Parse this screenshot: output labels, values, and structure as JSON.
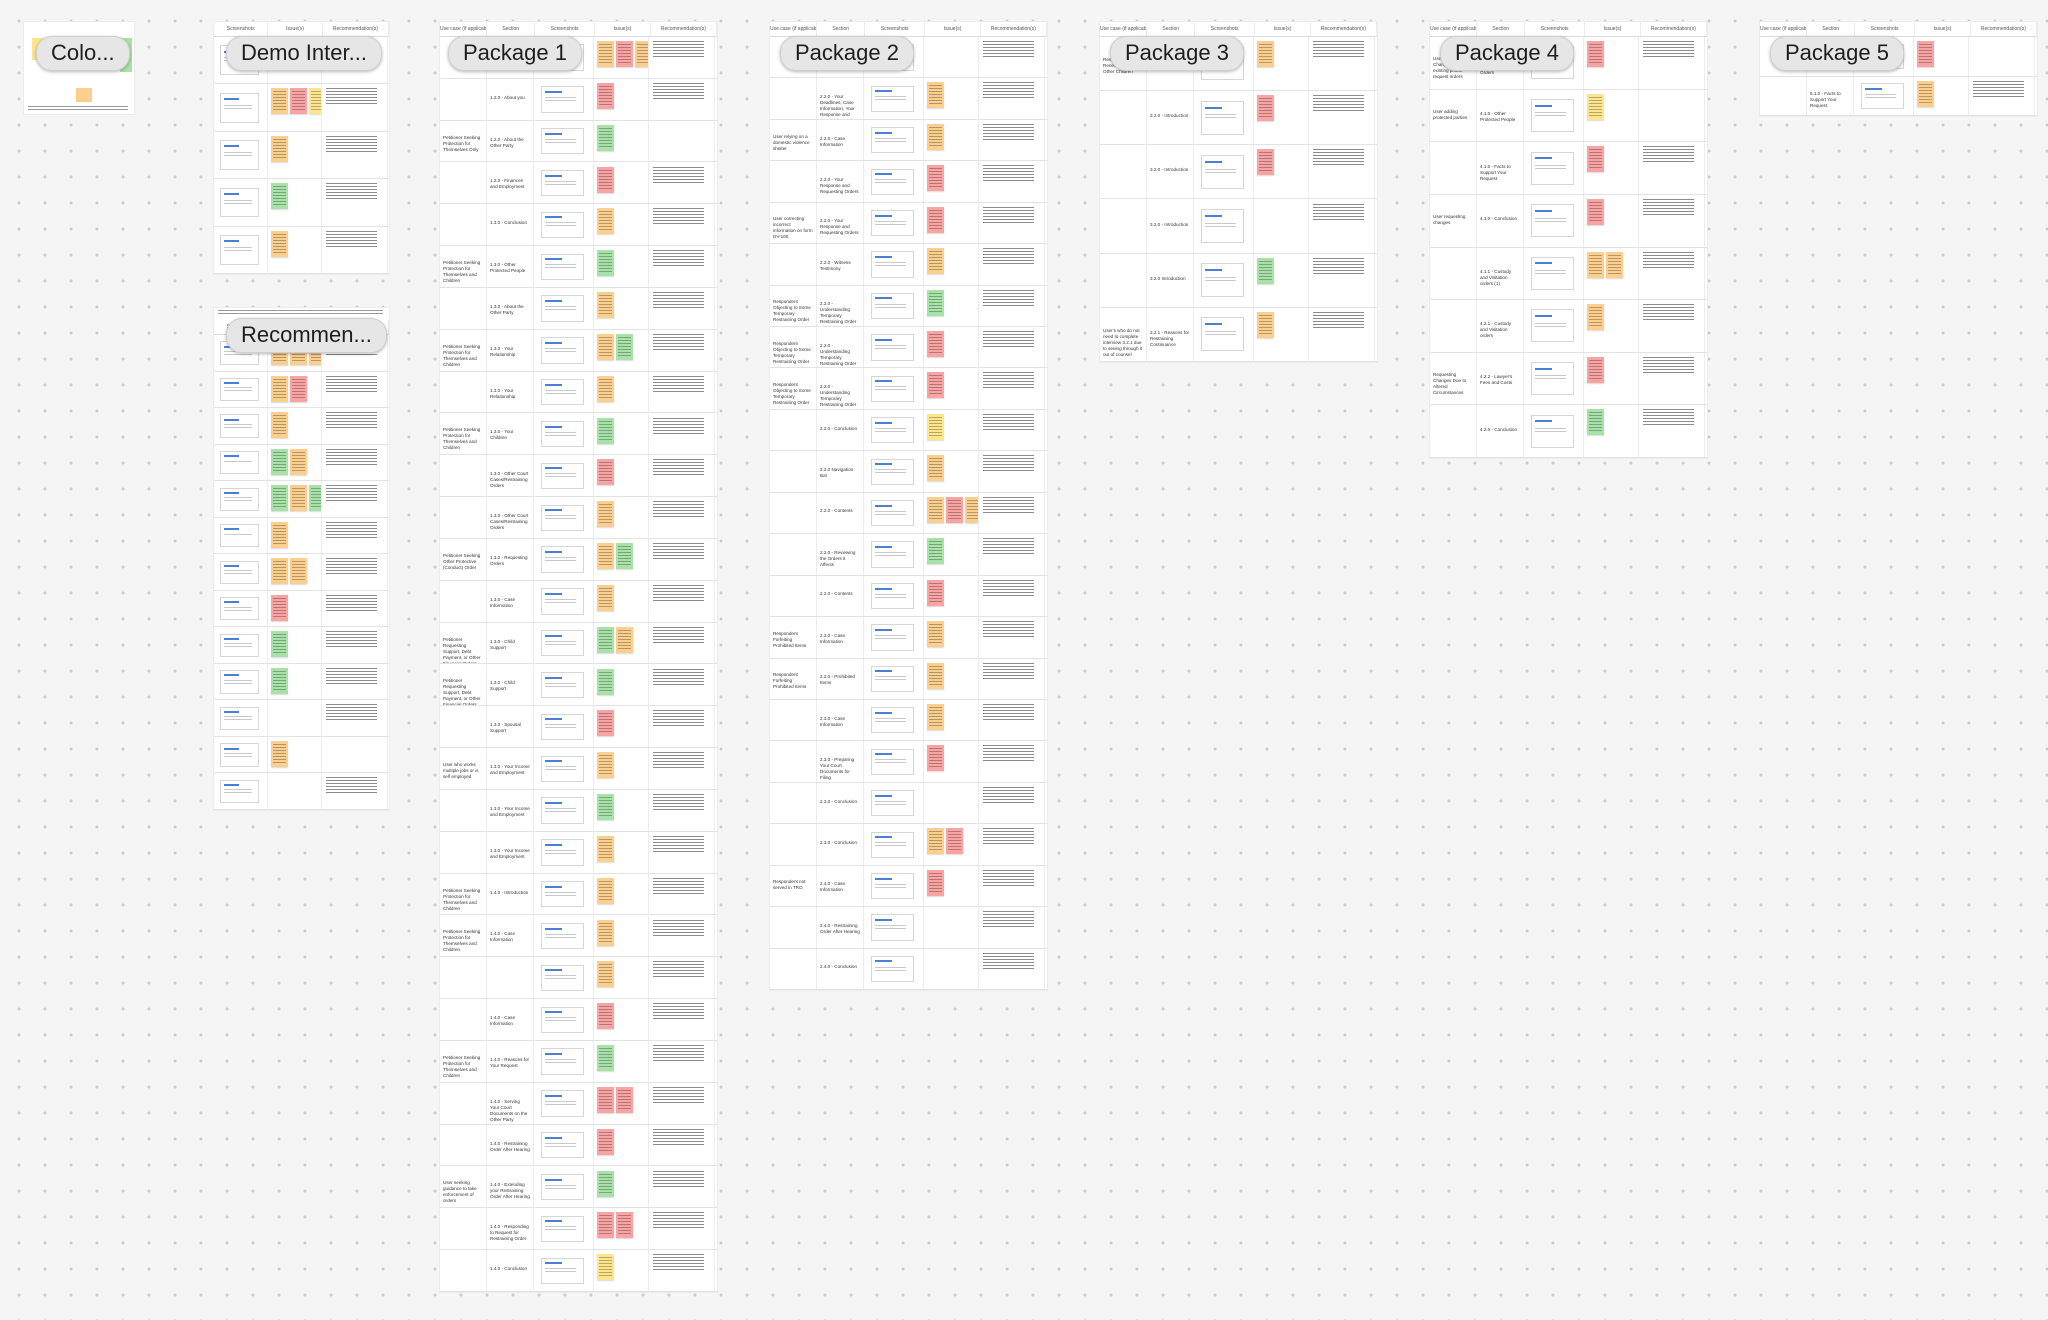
{
  "colors": {
    "canvas": "#f5f5f5",
    "frame": "#ffffff",
    "label_bg": "#e6e6e6",
    "sticky_orange": "#fccf8f",
    "sticky_red": "#f9a3a3",
    "sticky_green": "#a8e2a8",
    "sticky_yellow": "#fde58e",
    "link_blue": "#4a7fd6"
  },
  "columns_full": [
    "Use case (if applicable)",
    "Section",
    "Screenshots",
    "Issue(s)",
    "Recommendation(s)"
  ],
  "columns_short": [
    "Screenshots",
    "Issue(s)",
    "Recommendation(s)"
  ],
  "frames": [
    {
      "id": "colors",
      "label": "Colo...",
      "table": false,
      "rows": []
    },
    {
      "id": "demo",
      "label": "Demo Inter...",
      "table": "short",
      "rows": [
        {
          "use": "",
          "section": "",
          "stickies": [
            "orange",
            "orange"
          ],
          "reco": true
        },
        {
          "use": "",
          "section": "",
          "stickies": [
            "orange",
            "red",
            "yellow"
          ],
          "reco": true
        },
        {
          "use": "",
          "section": "",
          "stickies": [
            "orange"
          ],
          "reco": true
        },
        {
          "use": "",
          "section": "",
          "stickies": [
            "green"
          ],
          "reco": true
        },
        {
          "use": "",
          "section": "",
          "stickies": [
            "orange"
          ],
          "reco": true
        }
      ]
    },
    {
      "id": "recommend",
      "label": "Recommen...",
      "table": "short",
      "rows": [
        {
          "use": "",
          "section": "",
          "stickies": [
            "orange",
            "orange",
            "orange"
          ],
          "reco": true
        },
        {
          "use": "",
          "section": "",
          "stickies": [
            "orange",
            "red"
          ],
          "reco": true
        },
        {
          "use": "",
          "section": "",
          "stickies": [
            "orange"
          ],
          "reco": true
        },
        {
          "use": "",
          "section": "",
          "stickies": [
            "green",
            "orange"
          ],
          "reco": true
        },
        {
          "use": "",
          "section": "",
          "stickies": [
            "green",
            "orange",
            "green"
          ],
          "reco": true
        },
        {
          "use": "",
          "section": "",
          "stickies": [
            "orange"
          ],
          "reco": true
        },
        {
          "use": "",
          "section": "",
          "stickies": [
            "orange",
            "orange"
          ],
          "reco": true
        },
        {
          "use": "",
          "section": "",
          "stickies": [
            "red"
          ],
          "reco": true
        },
        {
          "use": "",
          "section": "",
          "stickies": [
            "green"
          ],
          "reco": true
        },
        {
          "use": "",
          "section": "",
          "stickies": [
            "green"
          ],
          "reco": true
        },
        {
          "use": "",
          "section": "",
          "stickies": [],
          "reco": true
        },
        {
          "use": "",
          "section": "",
          "stickies": [
            "orange"
          ],
          "reco": false
        },
        {
          "use": "",
          "section": "",
          "stickies": [],
          "reco": true
        }
      ]
    },
    {
      "id": "pkg1",
      "label": "Package 1",
      "table": "full",
      "rows": [
        {
          "use": "",
          "section": "",
          "stickies": [
            "orange",
            "red",
            "orange"
          ],
          "reco": true
        },
        {
          "use": "",
          "section": "1.2.0 - About you",
          "stickies": [
            "red"
          ],
          "reco": true
        },
        {
          "use": "Petitioner Seeking Protection for Themselves Only",
          "section": "1.2.0 - About the Other Party",
          "stickies": [
            "green"
          ],
          "reco": false
        },
        {
          "use": "",
          "section": "1.2.0 - Finances and Employment",
          "stickies": [
            "red"
          ],
          "reco": true
        },
        {
          "use": "",
          "section": "1.3.0 - Conclusion",
          "stickies": [
            "orange"
          ],
          "reco": true
        },
        {
          "use": "Petitioner Seeking Protection for Themselves and Children",
          "section": "1.3.0 - Other Protected People",
          "stickies": [
            "green"
          ],
          "reco": true
        },
        {
          "use": "",
          "section": "1.3.0 - About the Other Party",
          "stickies": [
            "orange"
          ],
          "reco": true
        },
        {
          "use": "Petitioner Seeking Protection for Themselves and Children",
          "section": "1.3.0 - Your Relationship",
          "stickies": [
            "orange",
            "green"
          ],
          "reco": true
        },
        {
          "use": "",
          "section": "1.3.0 - Your Relationship",
          "stickies": [
            "orange"
          ],
          "reco": true
        },
        {
          "use": "Petitioner Seeking Protection for Themselves and Children",
          "section": "1.3.0 - Your Children",
          "stickies": [
            "green"
          ],
          "reco": true
        },
        {
          "use": "",
          "section": "1.3.0 - Other Court Cases/Restraining Orders",
          "stickies": [
            "red"
          ],
          "reco": true
        },
        {
          "use": "",
          "section": "1.3.0 - Other Court Cases/Restraining Orders",
          "stickies": [
            "orange"
          ],
          "reco": true
        },
        {
          "use": "Petitioner Seeking Other Protective (Conduct) Order",
          "section": "1.3.0 - Requesting Orders",
          "stickies": [
            "orange",
            "green"
          ],
          "reco": true
        },
        {
          "use": "",
          "section": "1.3.0 - Case Information",
          "stickies": [
            "orange"
          ],
          "reco": true
        },
        {
          "use": "Petitioner Requesting Support, Debt Payment, or Other Financial Orders",
          "section": "1.3.0 - Child Support",
          "stickies": [
            "green",
            "orange"
          ],
          "reco": true
        },
        {
          "use": "Petitioner Requesting Support, Debt Payment, or Other Financial Orders",
          "section": "1.3.0 - Child Support",
          "stickies": [
            "green"
          ],
          "reco": true
        },
        {
          "use": "",
          "section": "1.3.0 - Spousal Support",
          "stickies": [
            "red"
          ],
          "reco": true
        },
        {
          "use": "User who works multiple jobs or is self employed",
          "section": "1.3.0 - Your Income and Employment",
          "stickies": [
            "orange"
          ],
          "reco": true
        },
        {
          "use": "",
          "section": "1.3.0 - Your Income and Employment",
          "stickies": [
            "green"
          ],
          "reco": true
        },
        {
          "use": "",
          "section": "1.3.0 - Your Income and Employment",
          "stickies": [
            "orange"
          ],
          "reco": true
        },
        {
          "use": "Petitioner Seeking Protection for Themselves and Children",
          "section": "1.4.0 - Introduction",
          "stickies": [
            "orange"
          ],
          "reco": true
        },
        {
          "use": "Petitioner Seeking Protection for Themselves and Children",
          "section": "1.4.0 - Case Information",
          "stickies": [
            "orange"
          ],
          "reco": true
        },
        {
          "use": "",
          "section": "",
          "stickies": [
            "orange"
          ],
          "reco": true
        },
        {
          "use": "",
          "section": "1.4.0 - Case Information",
          "stickies": [
            "red"
          ],
          "reco": true
        },
        {
          "use": "Petitioner Seeking Protection for Themselves and Children",
          "section": "1.4.0 - Reasons for Your Request",
          "stickies": [
            "green"
          ],
          "reco": true
        },
        {
          "use": "",
          "section": "1.4.0 - Serving Your Court Documents on the Other Party",
          "stickies": [
            "red",
            "red"
          ],
          "reco": true
        },
        {
          "use": "",
          "section": "1.4.0 - Restraining Order After Hearing",
          "stickies": [
            "red"
          ],
          "reco": true
        },
        {
          "use": "User seeking guidance to take enforcement of orders",
          "section": "1.4.0 - Extending your Restraining Order After Hearing",
          "stickies": [
            "green"
          ],
          "reco": true
        },
        {
          "use": "",
          "section": "1.4.0 - Responding to Request for Restraining Order",
          "stickies": [
            "red",
            "red"
          ],
          "reco": true
        },
        {
          "use": "",
          "section": "1.4.0 - Conclusion",
          "stickies": [
            "yellow"
          ],
          "reco": true
        }
      ]
    },
    {
      "id": "pkg2",
      "label": "Package 2",
      "table": "full",
      "rows": [
        {
          "use": "",
          "section": "",
          "stickies": [],
          "reco": true
        },
        {
          "use": "",
          "section": "2.2.0 - Your Deadlines, Case Information, Your Response and Requesting Orders",
          "stickies": [
            "orange"
          ],
          "reco": true
        },
        {
          "use": "User relying on a domestic violence shelter",
          "section": "2.2.0 - Case Information",
          "stickies": [
            "orange"
          ],
          "reco": true
        },
        {
          "use": "",
          "section": "2.2.0 - Your Response and Requesting Orders",
          "stickies": [
            "red"
          ],
          "reco": true
        },
        {
          "use": "User correcting incorrect information on form DV-100",
          "section": "2.2.0 - Your Response and Requesting Orders",
          "stickies": [
            "red"
          ],
          "reco": true
        },
        {
          "use": "",
          "section": "2.2.0 - Witness Testimony",
          "stickies": [
            "orange"
          ],
          "reco": true
        },
        {
          "use": "Respondent Objecting to Some Temporary Restraining Order",
          "section": "2.2.0 - Understanding Temporary Restraining Order",
          "stickies": [
            "green"
          ],
          "reco": true
        },
        {
          "use": "Respondent Objecting to Some Temporary Restraining Order",
          "section": "2.2.0 - Understanding Temporary Restraining Order",
          "stickies": [
            "red"
          ],
          "reco": true
        },
        {
          "use": "Respondent Objecting to Some Temporary Restraining Order",
          "section": "2.2.0 - Understanding Temporary Restraining Order",
          "stickies": [
            "red"
          ],
          "reco": true
        },
        {
          "use": "",
          "section": "2.2.0 - Conclusion",
          "stickies": [
            "yellow"
          ],
          "reco": true
        },
        {
          "use": "",
          "section": "2.2.0 Navigation Bar",
          "stickies": [
            "orange"
          ],
          "reco": true
        },
        {
          "use": "",
          "section": "2.2.0 - Contents",
          "stickies": [
            "orange",
            "red",
            "orange"
          ],
          "reco": true
        },
        {
          "use": "",
          "section": "2.2.0 - Reviewing the Orders it Affects",
          "stickies": [
            "green"
          ],
          "reco": true
        },
        {
          "use": "",
          "section": "2.2.0 - Contents",
          "stickies": [
            "red"
          ],
          "reco": true
        },
        {
          "use": "Respondent Forfeiting Prohibited Items",
          "section": "2.2.0 - Case Information",
          "stickies": [
            "orange"
          ],
          "reco": true
        },
        {
          "use": "Respondent Forfeiting Prohibited Items",
          "section": "2.2.0 - Prohibited Items",
          "stickies": [
            "orange"
          ],
          "reco": true
        },
        {
          "use": "",
          "section": "2.3.0 - Case Information",
          "stickies": [
            "orange"
          ],
          "reco": true
        },
        {
          "use": "",
          "section": "2.3.0 - Preparing Your Court Documents for Filing",
          "stickies": [
            "red"
          ],
          "reco": true
        },
        {
          "use": "",
          "section": "2.3.0 - Conclusion",
          "stickies": [],
          "reco": true
        },
        {
          "use": "",
          "section": "2.3.0 - Conclusion",
          "stickies": [
            "orange",
            "red"
          ],
          "reco": true
        },
        {
          "use": "Respondent not served in TRO",
          "section": "2.4.0 - Case Information",
          "stickies": [
            "red"
          ],
          "reco": true
        },
        {
          "use": "",
          "section": "2.4.0 - Restraining Order After Hearing",
          "stickies": [],
          "reco": true
        },
        {
          "use": "",
          "section": "2.4.0 - Conclusion",
          "stickies": [],
          "reco": true
        }
      ]
    },
    {
      "id": "pkg3",
      "label": "Package 3",
      "table": "full",
      "rows": [
        {
          "use": "Responding to Renewal form or Other Children",
          "section": "3.1.0 Conclusion",
          "stickies": [
            "orange"
          ],
          "reco": true
        },
        {
          "use": "",
          "section": "3.2.0 - Introduction",
          "stickies": [
            "red"
          ],
          "reco": true
        },
        {
          "use": "",
          "section": "3.2.0 - Introduction",
          "stickies": [
            "red"
          ],
          "reco": true
        },
        {
          "use": "",
          "section": "3.2.0 - Introduction",
          "stickies": [],
          "reco": true
        },
        {
          "use": "",
          "section": "3.2.0 Introduction",
          "stickies": [
            "green"
          ],
          "reco": true
        },
        {
          "use": "User's who do not need to complete interview 3.2.1 due to seeing through it out of counsel",
          "section": "3.2.1 - Reasons for Restraining Continuance",
          "stickies": [
            "orange"
          ],
          "reco": true
        }
      ]
    },
    {
      "id": "pkg4",
      "label": "Package 4",
      "table": "full",
      "rows": [
        {
          "use": "User Requesting Changes to existing phone request orders",
          "section": "4.1.0 - Request to Change or End Orders",
          "stickies": [
            "red"
          ],
          "reco": true
        },
        {
          "use": "User adding protected parties",
          "section": "4.1.0 - Other Protected People",
          "stickies": [
            "yellow"
          ],
          "reco": false
        },
        {
          "use": "",
          "section": "4.1.0 - Facts to Support Your Request",
          "stickies": [
            "red"
          ],
          "reco": true
        },
        {
          "use": "User requesting changes",
          "section": "4.1.0 - Conclusion",
          "stickies": [
            "red"
          ],
          "reco": true
        },
        {
          "use": "",
          "section": "4.1.1 - Custody and Visitation orders (1)",
          "stickies": [
            "orange",
            "orange"
          ],
          "reco": true
        },
        {
          "use": "",
          "section": "4.2.1 - Custody and Visitation orders",
          "stickies": [
            "orange"
          ],
          "reco": true
        },
        {
          "use": "Requesting Changes Due to Altered Circumstances",
          "section": "4.2.2 - Lawyer's Fees and Costs",
          "stickies": [
            "red"
          ],
          "reco": true
        },
        {
          "use": "",
          "section": "4.2.0 - Conclusion",
          "stickies": [
            "green"
          ],
          "reco": true
        }
      ]
    },
    {
      "id": "pkg5",
      "label": "Package 5",
      "table": "full",
      "rows": [
        {
          "use": "",
          "section": "",
          "stickies": [
            "red"
          ],
          "reco": false
        },
        {
          "use": "",
          "section": "5.1.0 - Facts to Support Your Request",
          "stickies": [
            "orange"
          ],
          "reco": true
        }
      ]
    }
  ]
}
